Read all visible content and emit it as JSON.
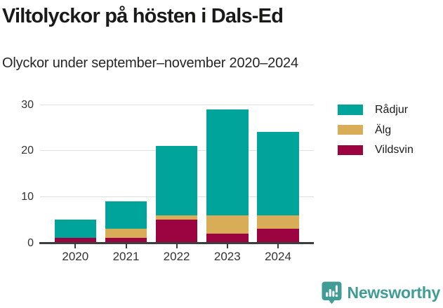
{
  "chart_data": {
    "type": "bar",
    "stacked": true,
    "title": "Viltolyckor på hösten i Dals-Ed",
    "subtitle": "Olyckor under september–november 2020–2024",
    "categories": [
      "2020",
      "2021",
      "2022",
      "2023",
      "2024"
    ],
    "series": [
      {
        "name": "Rådjur",
        "color": "#00a49b",
        "values": [
          4,
          6,
          15,
          23,
          18
        ]
      },
      {
        "name": "Älg",
        "color": "#d9ad57",
        "values": [
          0,
          2,
          1,
          4,
          3
        ]
      },
      {
        "name": "Vildsvin",
        "color": "#9b0341",
        "values": [
          1,
          1,
          5,
          2,
          3
        ]
      }
    ],
    "stack_order_bottom_to_top": [
      "Vildsvin",
      "Älg",
      "Rådjur"
    ],
    "totals": [
      5,
      9,
      21,
      29,
      24
    ],
    "ylim": [
      0,
      30
    ],
    "yticks": [
      0,
      10,
      20,
      30
    ],
    "grid": "horizontal",
    "legend_position": "right"
  },
  "colors": {
    "grid": "#e0e0e0",
    "axis": "#3d3d3d",
    "tick_text": "#333333",
    "title_text": "#1a1a18",
    "brand_teal": "#3f9d96"
  },
  "footer": {
    "brand": "Newsworthy",
    "logo_icon": "newsworthy-speech-bubble-barchart-icon"
  }
}
